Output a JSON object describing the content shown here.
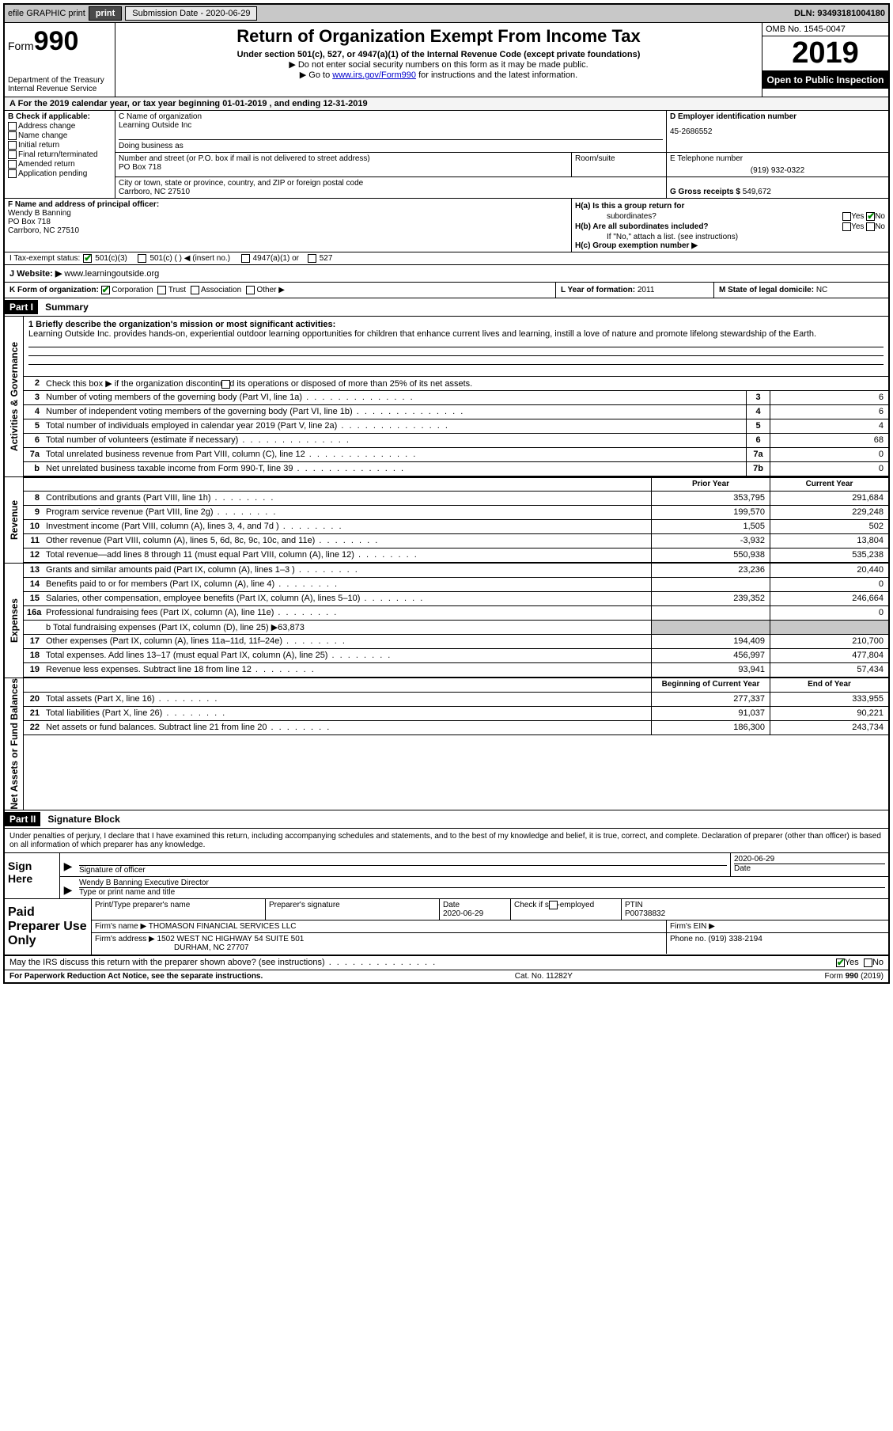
{
  "topbar": {
    "efile": "efile GRAPHIC print",
    "submission_label": "Submission Date - 2020-06-29",
    "dln": "DLN: 93493181004180"
  },
  "header": {
    "form_label": "Form",
    "form_number": "990",
    "dept": "Department of the Treasury\nInternal Revenue Service",
    "title": "Return of Organization Exempt From Income Tax",
    "subtitle": "Under section 501(c), 527, or 4947(a)(1) of the Internal Revenue Code (except private foundations)",
    "note1": "▶ Do not enter social security numbers on this form as it may be made public.",
    "note2_pre": "▶ Go to ",
    "note2_link": "www.irs.gov/Form990",
    "note2_post": " for instructions and the latest information.",
    "omb": "OMB No. 1545-0047",
    "year": "2019",
    "open": "Open to Public Inspection"
  },
  "row_a": "A For the 2019 calendar year, or tax year beginning 01-01-2019   , and ending 12-31-2019",
  "section_b": {
    "label": "B Check if applicable:",
    "items": [
      "Address change",
      "Name change",
      "Initial return",
      "Final return/terminated",
      "Amended return",
      "Application pending"
    ]
  },
  "section_c": {
    "name_label": "C Name of organization",
    "name": "Learning Outside Inc",
    "dba_label": "Doing business as",
    "dba": "",
    "addr_label": "Number and street (or P.O. box if mail is not delivered to street address)",
    "addr": "PO Box 718",
    "room_label": "Room/suite",
    "city_label": "City or town, state or province, country, and ZIP or foreign postal code",
    "city": "Carrboro, NC  27510"
  },
  "section_d": {
    "label": "D Employer identification number",
    "value": "45-2686552"
  },
  "section_e": {
    "label": "E Telephone number",
    "value": "(919) 932-0322"
  },
  "section_g": {
    "label": "G Gross receipts $",
    "value": "549,672"
  },
  "section_f": {
    "label": "F  Name and address of principal officer:",
    "line1": "Wendy B Banning",
    "line2": "PO Box 718",
    "line3": "Carrboro, NC  27510"
  },
  "section_h": {
    "ha_label": "H(a)  Is this a group return for",
    "ha_sub": "subordinates?",
    "hb_label": "H(b)  Are all subordinates included?",
    "hb_note": "If \"No,\" attach a list. (see instructions)",
    "hc_label": "H(c)  Group exemption number ▶"
  },
  "tax_status": {
    "label": "I  Tax-exempt status:",
    "opt1": "501(c)(3)",
    "opt2": "501(c) (  ) ◀ (insert no.)",
    "opt3": "4947(a)(1) or",
    "opt4": "527"
  },
  "website": {
    "label": "J  Website: ▶",
    "value": "www.learningoutside.org"
  },
  "k_org": {
    "label": "K Form of organization:",
    "opts": [
      "Corporation",
      "Trust",
      "Association",
      "Other ▶"
    ]
  },
  "section_l": {
    "label": "L Year of formation:",
    "value": "2011"
  },
  "section_m": {
    "label": "M State of legal domicile:",
    "value": "NC"
  },
  "part1": {
    "header": "Part I",
    "title": "Summary"
  },
  "mission": {
    "label": "1  Briefly describe the organization's mission or most significant activities:",
    "text": "Learning Outside Inc. provides hands-on, experiential outdoor learning opportunities for children that enhance current lives and learning, instill a love of nature and promote lifelong stewardship of the Earth."
  },
  "line2": "Check this box ▶          if the organization discontinued its operations or disposed of more than 25% of its net assets.",
  "lines_top": [
    {
      "num": "3",
      "text": "Number of voting members of the governing body (Part VI, line 1a)",
      "box": "3",
      "val": "6"
    },
    {
      "num": "4",
      "text": "Number of independent voting members of the governing body (Part VI, line 1b)",
      "box": "4",
      "val": "6"
    },
    {
      "num": "5",
      "text": "Total number of individuals employed in calendar year 2019 (Part V, line 2a)",
      "box": "5",
      "val": "4"
    },
    {
      "num": "6",
      "text": "Total number of volunteers (estimate if necessary)",
      "box": "6",
      "val": "68"
    },
    {
      "num": "7a",
      "text": "Total unrelated business revenue from Part VIII, column (C), line 12",
      "box": "7a",
      "val": "0"
    },
    {
      "num": "b",
      "text": "Net unrelated business taxable income from Form 990-T, line 39",
      "box": "7b",
      "val": "0"
    }
  ],
  "col_headers": {
    "prior": "Prior Year",
    "current": "Current Year",
    "begin": "Beginning of Current Year",
    "end": "End of Year"
  },
  "revenue": [
    {
      "num": "8",
      "text": "Contributions and grants (Part VIII, line 1h)",
      "c1": "353,795",
      "c2": "291,684"
    },
    {
      "num": "9",
      "text": "Program service revenue (Part VIII, line 2g)",
      "c1": "199,570",
      "c2": "229,248"
    },
    {
      "num": "10",
      "text": "Investment income (Part VIII, column (A), lines 3, 4, and 7d )",
      "c1": "1,505",
      "c2": "502"
    },
    {
      "num": "11",
      "text": "Other revenue (Part VIII, column (A), lines 5, 6d, 8c, 9c, 10c, and 11e)",
      "c1": "-3,932",
      "c2": "13,804"
    },
    {
      "num": "12",
      "text": "Total revenue—add lines 8 through 11 (must equal Part VIII, column (A), line 12)",
      "c1": "550,938",
      "c2": "535,238"
    }
  ],
  "expenses": [
    {
      "num": "13",
      "text": "Grants and similar amounts paid (Part IX, column (A), lines 1–3 )",
      "c1": "23,236",
      "c2": "20,440"
    },
    {
      "num": "14",
      "text": "Benefits paid to or for members (Part IX, column (A), line 4)",
      "c1": "",
      "c2": "0"
    },
    {
      "num": "15",
      "text": "Salaries, other compensation, employee benefits (Part IX, column (A), lines 5–10)",
      "c1": "239,352",
      "c2": "246,664"
    },
    {
      "num": "16a",
      "text": "Professional fundraising fees (Part IX, column (A), line 11e)",
      "c1": "",
      "c2": "0"
    }
  ],
  "line16b": "b  Total fundraising expenses (Part IX, column (D), line 25) ▶63,873",
  "expenses2": [
    {
      "num": "17",
      "text": "Other expenses (Part IX, column (A), lines 11a–11d, 11f–24e)",
      "c1": "194,409",
      "c2": "210,700"
    },
    {
      "num": "18",
      "text": "Total expenses. Add lines 13–17 (must equal Part IX, column (A), line 25)",
      "c1": "456,997",
      "c2": "477,804"
    },
    {
      "num": "19",
      "text": "Revenue less expenses. Subtract line 18 from line 12",
      "c1": "93,941",
      "c2": "57,434"
    }
  ],
  "netassets": [
    {
      "num": "20",
      "text": "Total assets (Part X, line 16)",
      "c1": "277,337",
      "c2": "333,955"
    },
    {
      "num": "21",
      "text": "Total liabilities (Part X, line 26)",
      "c1": "91,037",
      "c2": "90,221"
    },
    {
      "num": "22",
      "text": "Net assets or fund balances. Subtract line 21 from line 20",
      "c1": "186,300",
      "c2": "243,734"
    }
  ],
  "sides": {
    "act_gov": "Activities & Governance",
    "rev": "Revenue",
    "exp": "Expenses",
    "net": "Net Assets or Fund Balances"
  },
  "part2": {
    "header": "Part II",
    "title": "Signature Block"
  },
  "sig_decl": "Under penalties of perjury, I declare that I have examined this return, including accompanying schedules and statements, and to the best of my knowledge and belief, it is true, correct, and complete. Declaration of preparer (other than officer) is based on all information of which preparer has any knowledge.",
  "sign": {
    "side": "Sign Here",
    "officer_label": "Signature of officer",
    "date_label": "Date",
    "date": "2020-06-29",
    "name_label": "Type or print name and title",
    "name": "Wendy B Banning  Executive Director"
  },
  "prep": {
    "side": "Paid Preparer Use Only",
    "name_label": "Print/Type preparer's name",
    "sig_label": "Preparer's signature",
    "date_label": "Date",
    "date": "2020-06-29",
    "check_label": "Check          if self-employed",
    "ptin_label": "PTIN",
    "ptin": "P00738832",
    "firm_name_label": "Firm's name    ▶",
    "firm_name": "THOMASON FINANCIAL SERVICES LLC",
    "firm_ein_label": "Firm's EIN ▶",
    "firm_addr_label": "Firm's address ▶",
    "firm_addr1": "1502 WEST NC HIGHWAY 54 SUITE 501",
    "firm_addr2": "DURHAM, NC  27707",
    "phone_label": "Phone no.",
    "phone": "(919) 338-2194"
  },
  "discuss": "May the IRS discuss this return with the preparer shown above? (see instructions)",
  "footer": {
    "left": "For Paperwork Reduction Act Notice, see the separate instructions.",
    "mid": "Cat. No. 11282Y",
    "right": "Form 990 (2019)"
  },
  "yes": "Yes",
  "no": "No"
}
